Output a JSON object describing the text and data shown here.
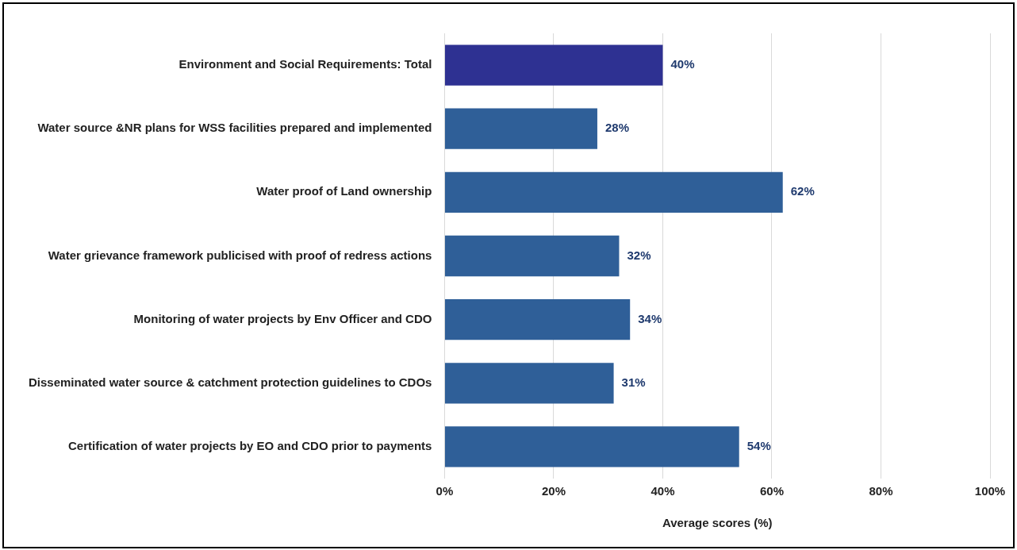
{
  "chart_data": {
    "type": "bar",
    "orientation": "horizontal",
    "categories": [
      "Environment and Social Requirements: Total",
      "Water source &NR plans for WSS facilities prepared and implemented",
      "Water proof of Land ownership",
      "Water grievance framework publicised with proof of redress actions",
      "Monitoring of water projects by Env Officer and CDO",
      "Disseminated water source & catchment protection guidelines to CDOs",
      "Certification of water projects by EO and CDO prior to payments"
    ],
    "values": [
      40,
      28,
      62,
      32,
      34,
      31,
      54
    ],
    "colors": [
      "#2e3192",
      "#2f5f98",
      "#2f5f98",
      "#2f5f98",
      "#2f5f98",
      "#2f5f98",
      "#2f5f98"
    ],
    "value_labels": [
      "40%",
      "28%",
      "62%",
      "32%",
      "34%",
      "31%",
      "54%"
    ],
    "xlabel": "Average scores (%)",
    "xlim": [
      0,
      100
    ],
    "xticks": [
      {
        "value": 0,
        "label": "0%"
      },
      {
        "value": 20,
        "label": "20%"
      },
      {
        "value": 40,
        "label": "40%"
      },
      {
        "value": 60,
        "label": "60%"
      },
      {
        "value": 80,
        "label": "80%"
      },
      {
        "value": 100,
        "label": "100%"
      }
    ],
    "grid": "x",
    "legend": false
  }
}
